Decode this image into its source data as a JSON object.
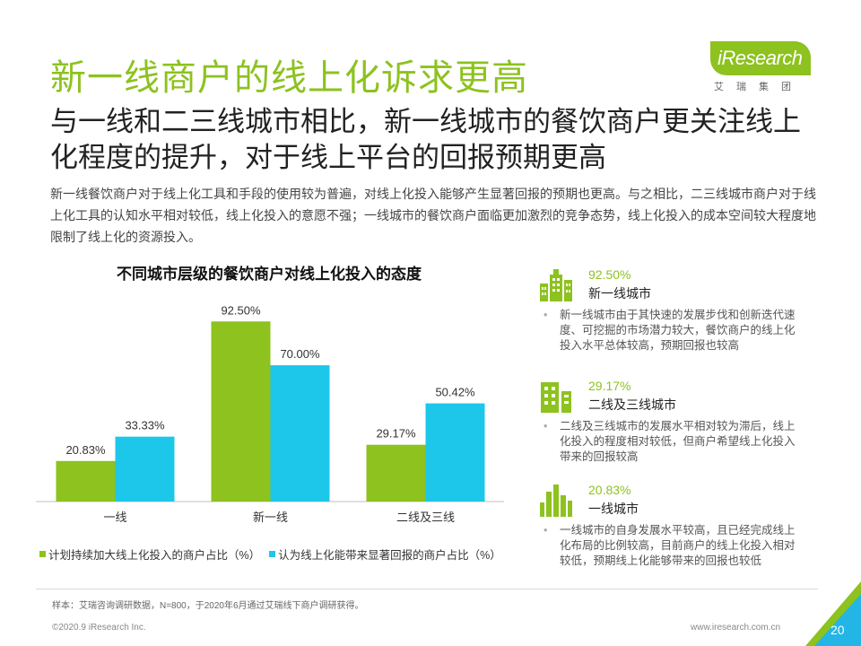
{
  "header": {
    "title": "新一线商户的线上化诉求更高",
    "subtitle": "与一线和二三线城市相比，新一线城市的餐饮商户更关注线上化程度的提升，对于线上平台的回报预期更高"
  },
  "logo": {
    "brand": "iResearch",
    "sub": "艾瑞集团"
  },
  "intro": "新一线餐饮商户对于线上化工具和手段的使用较为普遍，对线上化投入能够产生显著回报的预期也更高。与之相比，二三线城市商户对于线上化工具的认知水平相对较低，线上化投入的意愿不强；一线城市的餐饮商户面临更加激烈的竞争态势，线上化投入的成本空间较大程度地限制了线上化的资源投入。",
  "colors": {
    "accent": "#8dc21f",
    "series2": "#1dc7ea",
    "corner": "#22b5e5"
  },
  "chart_data": {
    "type": "bar",
    "title": "不同城市层级的餐饮商户对线上化投入的态度",
    "categories": [
      "一线",
      "新一线",
      "二线及三线"
    ],
    "series": [
      {
        "name": "计划持续加大线上化投入的商户占比（%）",
        "values": [
          20.83,
          92.5,
          29.17
        ],
        "labels": [
          "20.83%",
          "92.50%",
          "29.17%"
        ],
        "color": "#8dc21f"
      },
      {
        "name": "认为线上化能带来显著回报的商户占比（%）",
        "values": [
          33.33,
          70.0,
          50.42
        ],
        "labels": [
          "33.33%",
          "70.00%",
          "50.42%"
        ],
        "color": "#1dc7ea"
      }
    ],
    "ylim": [
      0,
      100
    ],
    "grid": false,
    "legend_position": "bottom"
  },
  "side_panels": [
    {
      "icon": "city-buildings-icon",
      "value": "92.50%",
      "label": "新一线城市",
      "text": "新一线城市由于其快速的发展步伐和创新迭代速度、可挖掘的市场潜力较大，餐饮商户的线上化投入水平总体较高，预期回报也较高"
    },
    {
      "icon": "building-icon",
      "value": "29.17%",
      "label": "二线及三线城市",
      "text": "二线及三线城市的发展水平相对较为滞后，线上化投入的程度相对较低，但商户希望线上化投入带来的回报较高"
    },
    {
      "icon": "skyline-icon",
      "value": "20.83%",
      "label": "一线城市",
      "text": "一线城市的自身发展水平较高，且已经完成线上化布局的比例较高，目前商户的线上化投入相对较低，预期线上化能够带来的回报也较低"
    }
  ],
  "footer": {
    "source": "样本：艾瑞咨询调研数据，N=800，于2020年6月通过艾瑞线下商户调研获得。",
    "copyright": "©2020.9 iResearch Inc.",
    "website": "www.iresearch.com.cn",
    "page": "20"
  }
}
